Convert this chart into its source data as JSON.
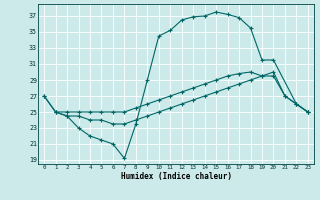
{
  "xlabel": "Humidex (Indice chaleur)",
  "bg_color": "#cceaea",
  "line_color": "#006666",
  "grid_color": "#ffffff",
  "xlim": [
    -0.5,
    23.5
  ],
  "ylim": [
    18.5,
    38.5
  ],
  "xticks": [
    0,
    1,
    2,
    3,
    4,
    5,
    6,
    7,
    8,
    9,
    10,
    11,
    12,
    13,
    14,
    15,
    16,
    17,
    18,
    19,
    20,
    21,
    22,
    23
  ],
  "yticks": [
    19,
    21,
    23,
    25,
    27,
    29,
    31,
    33,
    35,
    37
  ],
  "line1_x": [
    0,
    1,
    2,
    3,
    4,
    5,
    6,
    7,
    8,
    9,
    10,
    11,
    12,
    13,
    14,
    15,
    16,
    17,
    18,
    19,
    20,
    21,
    22,
    23
  ],
  "line1_y": [
    27,
    25,
    25,
    25,
    25,
    25,
    25,
    25,
    25.5,
    26,
    26.5,
    27,
    27.5,
    28,
    28.5,
    29,
    29.5,
    29.8,
    30,
    29.5,
    29.5,
    27,
    26,
    25
  ],
  "line2_x": [
    0,
    1,
    2,
    3,
    4,
    5,
    6,
    7,
    8,
    9,
    10,
    11,
    12,
    13,
    14,
    15,
    16,
    17,
    18,
    19,
    20,
    21,
    22,
    23
  ],
  "line2_y": [
    27,
    25,
    24.5,
    24.5,
    24,
    24,
    23.5,
    23.5,
    24,
    24.5,
    25,
    25.5,
    26,
    26.5,
    27,
    27.5,
    28,
    28.5,
    29,
    29.5,
    30,
    27,
    26,
    25
  ],
  "line3_x": [
    1,
    2,
    3,
    4,
    5,
    6,
    7,
    8,
    9,
    10,
    11,
    12,
    13,
    14,
    15,
    16,
    17,
    18,
    19,
    20,
    22,
    23
  ],
  "line3_y": [
    25,
    24.5,
    23,
    22,
    21.5,
    21,
    19.2,
    23.5,
    29,
    34.5,
    35.2,
    36.5,
    36.9,
    37,
    37.5,
    37.2,
    36.8,
    35.5,
    31.5,
    31.5,
    26,
    25
  ]
}
